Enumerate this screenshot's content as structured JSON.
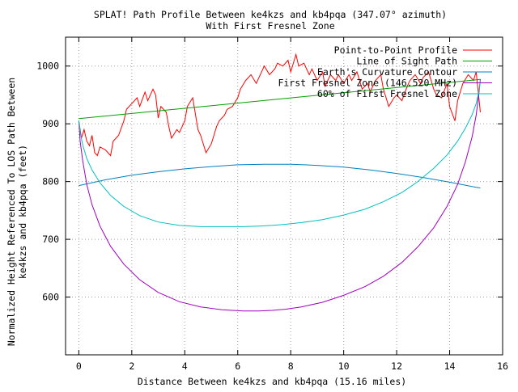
{
  "chart_data": {
    "type": "line",
    "title": "SPLAT! Path Profile Between ke4kzs and kb4pqa (347.07° azimuth)",
    "subtitle": "With First Fresnel Zone",
    "xlabel": "Distance Between ke4kzs and kb4pqa (15.16 miles)",
    "ylabel_line1": "Normalized Height Referenced To LOS Path Between",
    "ylabel_line2": "ke4kzs and kb4pqa (feet)",
    "xlim": [
      -0.5,
      16
    ],
    "ylim": [
      500,
      1050
    ],
    "x_ticks": [
      "0",
      "2",
      "4",
      "6",
      "8",
      "10",
      "12",
      "14",
      "16"
    ],
    "x_tick_values": [
      0,
      2,
      4,
      6,
      8,
      10,
      12,
      14,
      16
    ],
    "y_ticks": [
      "600",
      "700",
      "800",
      "900",
      "1000"
    ],
    "y_tick_values": [
      600,
      700,
      800,
      900,
      1000
    ],
    "grid": true,
    "legend_position": "top-right",
    "series": [
      {
        "name": "Point-to-Point Profile",
        "color": "#ff0000",
        "x": [
          0,
          0.1,
          0.2,
          0.3,
          0.4,
          0.5,
          0.6,
          0.7,
          0.8,
          1.0,
          1.2,
          1.3,
          1.5,
          1.7,
          1.8,
          2.0,
          2.2,
          2.3,
          2.5,
          2.6,
          2.8,
          2.9,
          3.0,
          3.1,
          3.3,
          3.4,
          3.5,
          3.7,
          3.8,
          4.0,
          4.1,
          4.3,
          4.5,
          4.6,
          4.8,
          5.0,
          5.1,
          5.2,
          5.3,
          5.5,
          5.6,
          5.8,
          6.0,
          6.1,
          6.3,
          6.5,
          6.7,
          6.9,
          7.0,
          7.2,
          7.4,
          7.5,
          7.7,
          7.9,
          8.0,
          8.2,
          8.3,
          8.5,
          8.7,
          8.8,
          9.0,
          9.2,
          9.3,
          9.5,
          9.7,
          9.8,
          10.0,
          10.2,
          10.3,
          10.5,
          10.7,
          10.9,
          11.0,
          11.2,
          11.4,
          11.5,
          11.7,
          11.9,
          12.0,
          12.2,
          12.4,
          12.5,
          12.7,
          12.9,
          13.0,
          13.2,
          13.4,
          13.5,
          13.7,
          13.9,
          14.0,
          14.2,
          14.3,
          14.5,
          14.7,
          14.9,
          15.0,
          15.16
        ],
        "y": [
          905,
          875,
          890,
          870,
          862,
          880,
          850,
          845,
          860,
          855,
          845,
          870,
          880,
          905,
          925,
          935,
          945,
          930,
          955,
          940,
          960,
          950,
          910,
          930,
          920,
          895,
          875,
          890,
          885,
          905,
          930,
          945,
          890,
          880,
          850,
          865,
          880,
          895,
          905,
          915,
          925,
          930,
          945,
          960,
          975,
          985,
          970,
          990,
          1000,
          985,
          995,
          1005,
          1000,
          1010,
          990,
          1020,
          1000,
          1005,
          985,
          995,
          975,
          990,
          965,
          985,
          975,
          985,
          970,
          985,
          975,
          990,
          960,
          970,
          955,
          975,
          985,
          960,
          930,
          945,
          950,
          940,
          965,
          975,
          985,
          970,
          980,
          990,
          960,
          950,
          945,
          970,
          930,
          905,
          940,
          970,
          985,
          975,
          990,
          920
        ],
        "markers": false
      },
      {
        "name": "Line of Sight Path",
        "color": "#00a000",
        "x": [
          0,
          15.16
        ],
        "y": [
          909,
          977
        ],
        "markers": false
      },
      {
        "name": "Earth's Curvature Contour",
        "color": "#0080c0",
        "x": [
          0,
          1,
          2,
          3,
          4,
          5,
          6,
          7,
          7.58,
          8,
          9,
          10,
          11,
          12,
          13,
          14,
          15,
          15.16
        ],
        "y": [
          793,
          803,
          811,
          817,
          822,
          826,
          829,
          830,
          830,
          830,
          828,
          825,
          820,
          814,
          807,
          799,
          790,
          789
        ],
        "markers": false
      },
      {
        "name": "First Fresnel Zone (146.520 MHz)",
        "color": "#a000c0",
        "x": [
          0,
          0.05,
          0.15,
          0.3,
          0.5,
          0.8,
          1.2,
          1.7,
          2.3,
          3.0,
          3.8,
          4.6,
          5.4,
          6.2,
          6.8,
          7.3,
          7.8,
          8.4,
          9.2,
          10.0,
          10.8,
          11.5,
          12.2,
          12.8,
          13.4,
          13.9,
          14.3,
          14.6,
          14.85,
          15.0,
          15.1,
          15.16
        ],
        "y": [
          905,
          870,
          835,
          795,
          760,
          723,
          688,
          657,
          630,
          608,
          592,
          583,
          578,
          576,
          576,
          577,
          579,
          583,
          591,
          603,
          618,
          636,
          660,
          687,
          720,
          757,
          795,
          835,
          878,
          915,
          950,
          977
        ],
        "markers": false
      },
      {
        "name": "60% of First Fresnel Zone",
        "color": "#00c0c0",
        "x": [
          0,
          0.05,
          0.15,
          0.3,
          0.5,
          0.8,
          1.2,
          1.7,
          2.3,
          3.0,
          3.8,
          4.6,
          5.4,
          6.2,
          6.8,
          7.3,
          7.8,
          8.4,
          9.2,
          10.0,
          10.8,
          11.5,
          12.2,
          12.8,
          13.4,
          13.9,
          14.3,
          14.6,
          14.85,
          15.0,
          15.1,
          15.16
        ],
        "y": [
          906,
          885,
          863,
          840,
          820,
          798,
          776,
          757,
          741,
          730,
          724,
          722,
          722,
          722,
          723,
          724,
          726,
          729,
          734,
          742,
          752,
          765,
          781,
          800,
          823,
          846,
          870,
          893,
          916,
          935,
          955,
          975
        ],
        "markers": false
      }
    ]
  }
}
